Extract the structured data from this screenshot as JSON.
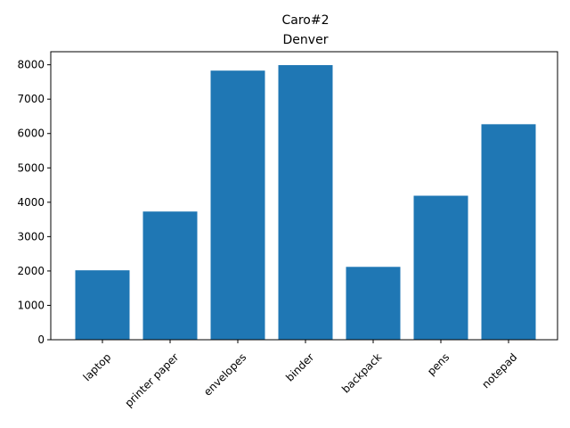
{
  "chart_data": {
    "type": "bar",
    "title": "Caro#2",
    "subtitle": "Denver",
    "xlabel": "",
    "ylabel": "",
    "categories": [
      "laptop",
      "printer paper",
      "envelopes",
      "binder",
      "backpack",
      "pens",
      "notepad"
    ],
    "values": [
      2020,
      3730,
      7830,
      7990,
      2120,
      4190,
      6270
    ],
    "ylim": [
      0,
      8380
    ],
    "yticks": [
      0,
      1000,
      2000,
      3000,
      4000,
      5000,
      6000,
      7000,
      8000
    ],
    "bar_color": "#1f77b4",
    "grid": false,
    "legend": "none"
  }
}
